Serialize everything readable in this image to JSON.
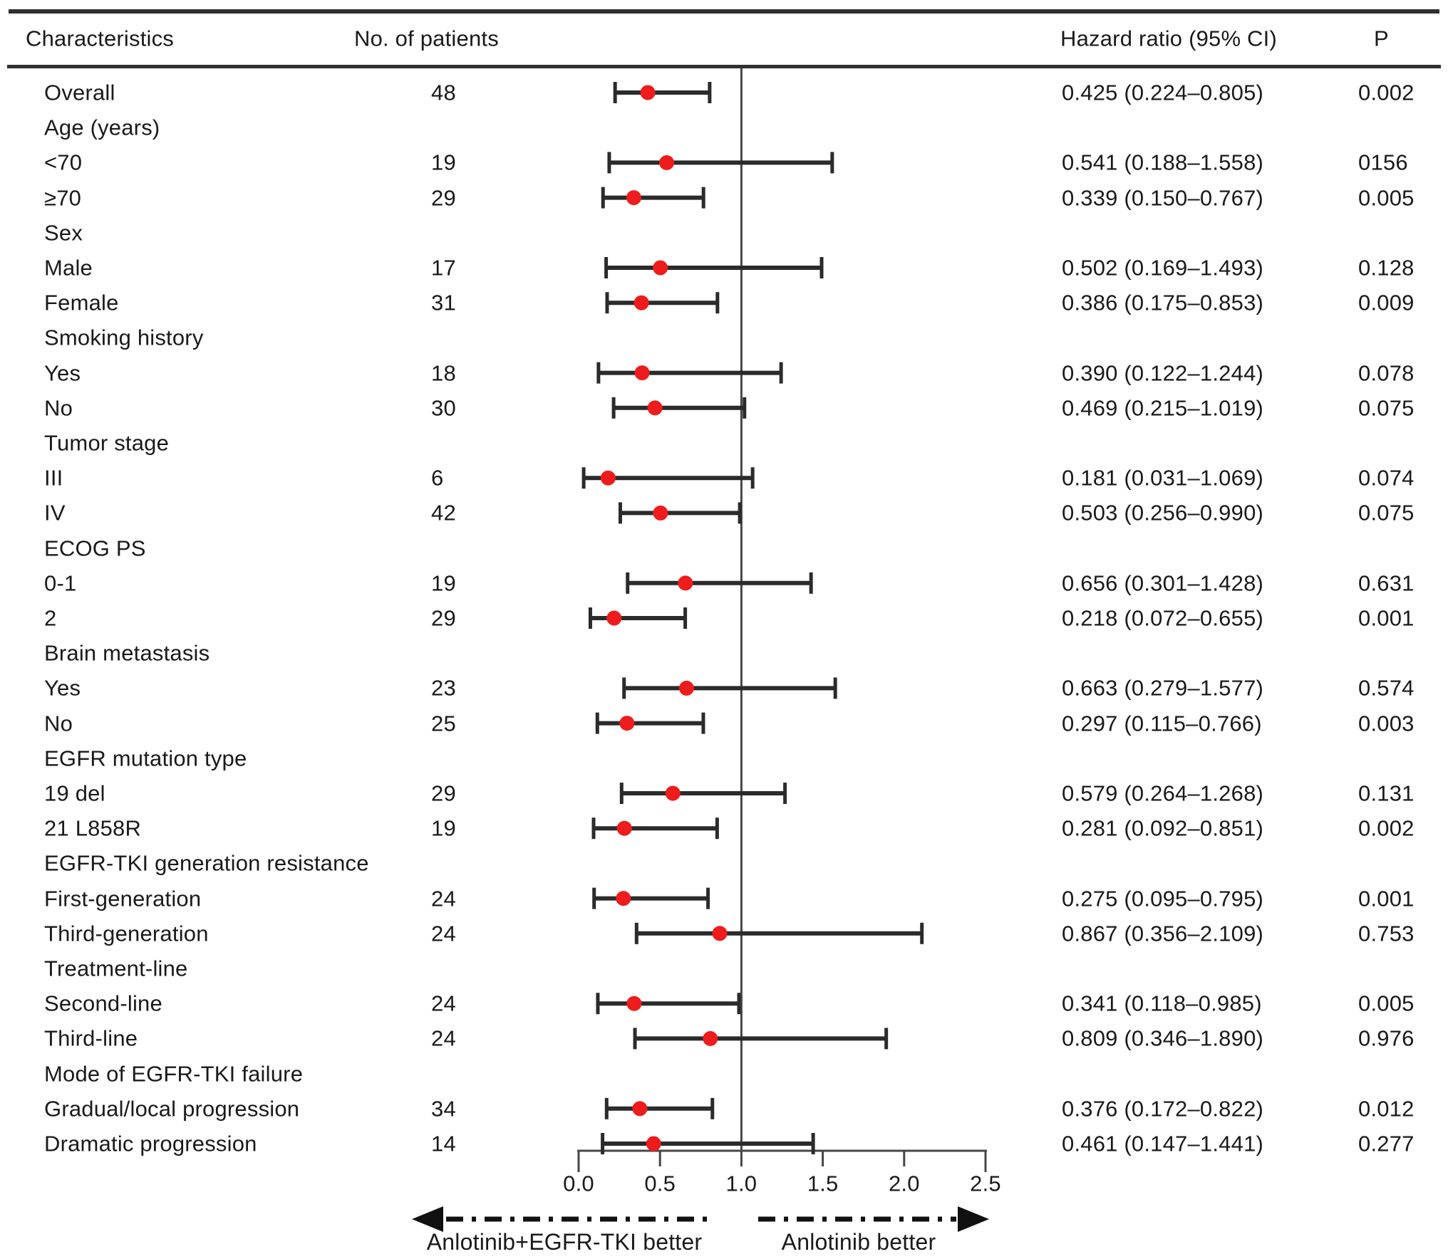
{
  "columns": {
    "characteristics": "Characteristics",
    "patients": "No. of patients",
    "hazard": "Hazard ratio (95% CI)",
    "p": "P"
  },
  "chart_data": {
    "type": "forest",
    "axis": {
      "min": 0.0,
      "max": 2.5,
      "tick_values": [
        0.0,
        0.5,
        1.0,
        1.5,
        2.0,
        2.5
      ],
      "tick_labels": [
        "0.0",
        "0.5",
        "1.0",
        "1.5",
        "2.0",
        "2.5"
      ],
      "reference_value": 1.0
    },
    "direction_labels": {
      "left": "Anlotinib+EGFR-TKI better",
      "right": "Anlotinib better"
    },
    "colors": {
      "marker": "#ee1c1c",
      "bar": "#2b2b2b",
      "axis": "#474747",
      "arrow": "#111111",
      "rule": "#303030",
      "text": "#1a1a1a"
    },
    "rows": [
      {
        "label": "Overall",
        "n": "48",
        "hr": 0.425,
        "lo": 0.224,
        "hi": 0.805,
        "hr_text": "0.425 (0.224–0.805)",
        "p": "0.002"
      },
      {
        "label": "Age (years)",
        "header": true
      },
      {
        "label": "<70",
        "n": "19",
        "hr": 0.541,
        "lo": 0.188,
        "hi": 1.558,
        "hr_text": "0.541 (0.188–1.558)",
        "p": "0156"
      },
      {
        "label": "≥70",
        "n": "29",
        "hr": 0.339,
        "lo": 0.15,
        "hi": 0.767,
        "hr_text": "0.339 (0.150–0.767)",
        "p": "0.005"
      },
      {
        "label": "Sex",
        "header": true
      },
      {
        "label": "Male",
        "n": "17",
        "hr": 0.502,
        "lo": 0.169,
        "hi": 1.493,
        "hr_text": "0.502 (0.169–1.493)",
        "p": "0.128"
      },
      {
        "label": "Female",
        "n": "31",
        "hr": 0.386,
        "lo": 0.175,
        "hi": 0.853,
        "hr_text": "0.386 (0.175–0.853)",
        "p": "0.009"
      },
      {
        "label": "Smoking history",
        "header": true
      },
      {
        "label": "Yes",
        "n": "18",
        "hr": 0.39,
        "lo": 0.122,
        "hi": 1.244,
        "hr_text": "0.390 (0.122–1.244)",
        "p": "0.078"
      },
      {
        "label": "No",
        "n": "30",
        "hr": 0.469,
        "lo": 0.215,
        "hi": 1.019,
        "hr_text": "0.469 (0.215–1.019)",
        "p": "0.075"
      },
      {
        "label": "Tumor stage",
        "header": true
      },
      {
        "label": "III",
        "n": "6",
        "hr": 0.181,
        "lo": 0.031,
        "hi": 1.069,
        "hr_text": "0.181 (0.031–1.069)",
        "p": "0.074"
      },
      {
        "label": "IV",
        "n": "42",
        "hr": 0.503,
        "lo": 0.256,
        "hi": 0.99,
        "hr_text": "0.503 (0.256–0.990)",
        "p": "0.075"
      },
      {
        "label": "ECOG PS",
        "header": true
      },
      {
        "label": "0-1",
        "n": "19",
        "hr": 0.656,
        "lo": 0.301,
        "hi": 1.428,
        "hr_text": "0.656 (0.301–1.428)",
        "p": "0.631"
      },
      {
        "label": "2",
        "n": "29",
        "hr": 0.218,
        "lo": 0.072,
        "hi": 0.655,
        "hr_text": "0.218 (0.072–0.655)",
        "p": "0.001"
      },
      {
        "label": "Brain metastasis",
        "header": true
      },
      {
        "label": "Yes",
        "n": "23",
        "hr": 0.663,
        "lo": 0.279,
        "hi": 1.577,
        "hr_text": "0.663 (0.279–1.577)",
        "p": "0.574"
      },
      {
        "label": "No",
        "n": "25",
        "hr": 0.297,
        "lo": 0.115,
        "hi": 0.766,
        "hr_text": "0.297 (0.115–0.766)",
        "p": "0.003"
      },
      {
        "label": "EGFR mutation type",
        "header": true
      },
      {
        "label": "19 del",
        "n": "29",
        "hr": 0.579,
        "lo": 0.264,
        "hi": 1.268,
        "hr_text": "0.579 (0.264–1.268)",
        "p": "0.131"
      },
      {
        "label": "21 L858R",
        "n": "19",
        "hr": 0.281,
        "lo": 0.092,
        "hi": 0.851,
        "hr_text": "0.281 (0.092–0.851)",
        "p": "0.002"
      },
      {
        "label": "EGFR-TKI generation resistance",
        "header": true
      },
      {
        "label": "First-generation",
        "n": "24",
        "hr": 0.275,
        "lo": 0.095,
        "hi": 0.795,
        "hr_text": "0.275 (0.095–0.795)",
        "p": "0.001"
      },
      {
        "label": "Third-generation",
        "n": "24",
        "hr": 0.867,
        "lo": 0.356,
        "hi": 2.109,
        "hr_text": "0.867 (0.356–2.109)",
        "p": "0.753"
      },
      {
        "label": "Treatment-line",
        "header": true
      },
      {
        "label": "Second-line",
        "n": "24",
        "hr": 0.341,
        "lo": 0.118,
        "hi": 0.985,
        "hr_text": "0.341 (0.118–0.985)",
        "p": "0.005"
      },
      {
        "label": "Third-line",
        "n": "24",
        "hr": 0.809,
        "lo": 0.346,
        "hi": 1.89,
        "hr_text": "0.809 (0.346–1.890)",
        "p": "0.976"
      },
      {
        "label": "Mode of EGFR-TKI failure",
        "header": true
      },
      {
        "label": "Gradual/local progression",
        "n": "34",
        "hr": 0.376,
        "lo": 0.172,
        "hi": 0.822,
        "hr_text": "0.376 (0.172–0.822)",
        "p": "0.012"
      },
      {
        "label": "Dramatic progression",
        "n": "14",
        "hr": 0.461,
        "lo": 0.147,
        "hi": 1.441,
        "hr_text": "0.461 (0.147–1.441)",
        "p": "0.277"
      }
    ]
  }
}
